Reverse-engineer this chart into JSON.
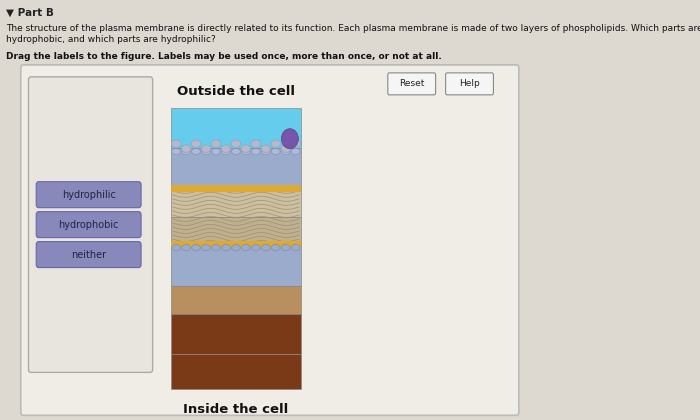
{
  "bg_color": "#ddd9d0",
  "outer_box_facecolor": "#e8e5de",
  "outer_box_border": "#bbbbbb",
  "left_panel_bg": "#e0ddd5",
  "title_text": "▼ Part B",
  "question_line1": "The structure of the plasma membrane is directly related to its function. Each plasma membrane is made of two layers of phospholipids. Which parts are",
  "question_line2": "hydrophobic, and which parts are hydrophilic?",
  "drag_text": "Drag the labels to the figure. Labels may be used once, more than once, or not at all.",
  "outside_label": "Outside the cell",
  "inside_label": "Inside the cell",
  "label_buttons": [
    "hydrophilic",
    "hydrophobic",
    "neither"
  ],
  "label_btn_color": "#8888bb",
  "label_btn_border": "#6666aa",
  "reset_btn": "Reset",
  "help_btn": "Help",
  "cyan_layer_color": "#66ccee",
  "sphere_top_color": "#b8b8cc",
  "sphere_blue_color": "#9aabcc",
  "sphere_purple_color": "#7755aa",
  "tail_color1": "#ccc0a0",
  "tail_color2": "#bfb090",
  "yellow_band_color": "#ddaa33",
  "brown_bottom_color": "#7a3a18",
  "brownish_color": "#b89060",
  "panel_border": "#aaaaaa"
}
